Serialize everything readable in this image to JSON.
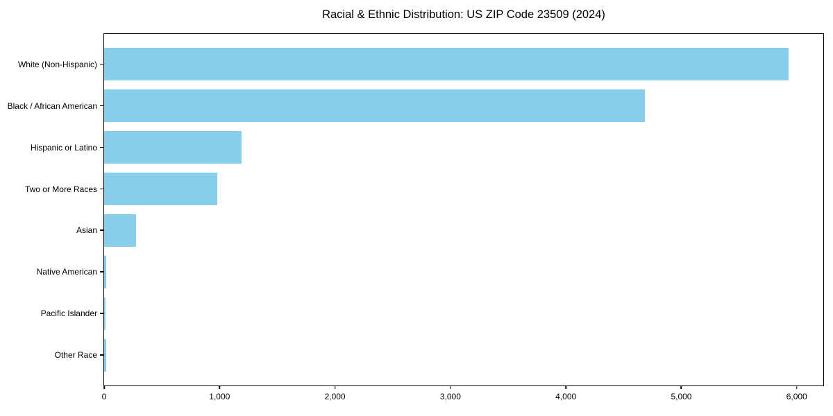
{
  "chart_data": {
    "type": "bar",
    "orientation": "horizontal",
    "title": "Racial & Ethnic Distribution: US ZIP Code 23509 (2024)",
    "categories": [
      "White (Non-Hispanic)",
      "Black / African American",
      "Hispanic or Latino",
      "Two or More Races",
      "Asian",
      "Native American",
      "Pacific Islander",
      "Other Race"
    ],
    "values": [
      5930,
      4685,
      1190,
      980,
      275,
      18,
      15,
      20
    ],
    "xlabel": "",
    "ylabel": "",
    "xlim": [
      0,
      6230
    ],
    "x_ticks": [
      0,
      1000,
      2000,
      3000,
      4000,
      5000,
      6000
    ],
    "x_tick_labels": [
      "0",
      "1,000",
      "2,000",
      "3,000",
      "4,000",
      "5,000",
      "6,000"
    ],
    "bar_color": "#87CEEB",
    "axis_color": "#000000",
    "background_color": "#ffffff",
    "grid": false,
    "legend": null
  }
}
